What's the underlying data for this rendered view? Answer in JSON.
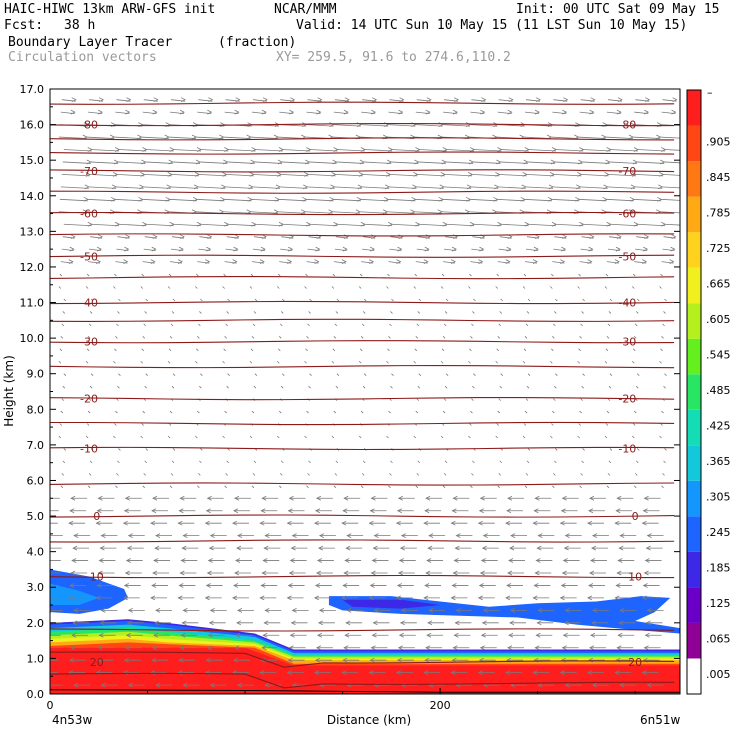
{
  "header": {
    "model": "HAIC-HIWC 13km ARW-GFS init",
    "center": "NCAR/MMM",
    "init": "Init: 00 UTC Sat 09 May 15",
    "fcst_label": "Fcst:",
    "fcst_value": "38 h",
    "valid": "Valid: 14 UTC Sun 10 May 15 (11 LST Sun 10 May 15)",
    "field": "Boundary Layer Tracer",
    "field_units": "(fraction)",
    "overlay": "Circulation vectors",
    "xy": "XY= 259.5, 91.6 to 274.6,110.2"
  },
  "colors": {
    "contour": "#8b1a1a",
    "vector": "#7a7a7a",
    "frame": "#000000"
  },
  "chart_data": {
    "type": "heatmap",
    "xlabel": "Distance (km)",
    "ylabel": "Height (km)",
    "xlim": [
      0,
      323
    ],
    "ylim": [
      0,
      17
    ],
    "x_ticks": [
      0,
      200
    ],
    "x_tick_labels": [
      "0",
      "200"
    ],
    "x_end_labels": [
      "4n53w",
      "6n51w"
    ],
    "y_ticks": [
      0.0,
      1.0,
      2.0,
      3.0,
      4.0,
      5.0,
      6.0,
      7.0,
      8.0,
      9.0,
      10.0,
      11.0,
      12.0,
      13.0,
      14.0,
      15.0,
      16.0,
      17.0
    ],
    "y_tick_labels": [
      "0.0",
      "1.0",
      "2.0",
      "3.0",
      "4.0",
      "5.0",
      "6.0",
      "7.0",
      "8.0",
      "9.0",
      "10.0",
      "11.0",
      "12.0",
      "13.0",
      "14.0",
      "15.0",
      "16.0",
      "17.0"
    ],
    "colorbar": {
      "labels": [
        ".005",
        ".065",
        ".125",
        ".185",
        ".245",
        ".305",
        ".365",
        ".425",
        ".485",
        ".545",
        ".605",
        ".665",
        ".725",
        ".785",
        ".845",
        ".905"
      ],
      "top_label": "–",
      "colors": [
        "#ffffff",
        "#8e0096",
        "#6a00c8",
        "#3c28e6",
        "#1e64ff",
        "#1496ff",
        "#14c8dc",
        "#14dcb4",
        "#28e664",
        "#64f01e",
        "#b4f01e",
        "#f0f01e",
        "#ffd21e",
        "#ffaa14",
        "#ff7814",
        "#ff4614",
        "#ff1e1e"
      ]
    },
    "temperature_contours": [
      {
        "label": "-80",
        "height": 16.0
      },
      {
        "label": "-70",
        "height": 14.7
      },
      {
        "label": "-60",
        "height": 13.5
      },
      {
        "label": "-50",
        "height": 12.3
      },
      {
        "label": "-40",
        "height": 11.0
      },
      {
        "label": "-30",
        "height": 9.9
      },
      {
        "label": "-20",
        "height": 8.3
      },
      {
        "label": "-10",
        "height": 6.9
      },
      {
        "label": "0",
        "height": 5.0
      },
      {
        "label": "10",
        "height": 3.3
      },
      {
        "label": "20",
        "height": 0.9
      }
    ],
    "extra_contour_heights": [
      0.3,
      1.8,
      4.3,
      5.9,
      7.6,
      9.2,
      10.5,
      11.7,
      12.9,
      14.1,
      15.2,
      15.6,
      16.6
    ],
    "tracer_surface_top_km": [
      [
        0,
        2.0
      ],
      [
        40,
        2.1
      ],
      [
        60,
        2.0
      ],
      [
        105,
        1.7
      ],
      [
        125,
        1.2
      ],
      [
        180,
        1.2
      ],
      [
        323,
        1.2
      ]
    ],
    "tracer_region_bottom_layer": {
      "value": "0.905+",
      "top_km": [
        [
          0,
          1.3
        ],
        [
          100,
          1.3
        ],
        [
          125,
          0.8
        ],
        [
          323,
          0.8
        ]
      ]
    }
  }
}
